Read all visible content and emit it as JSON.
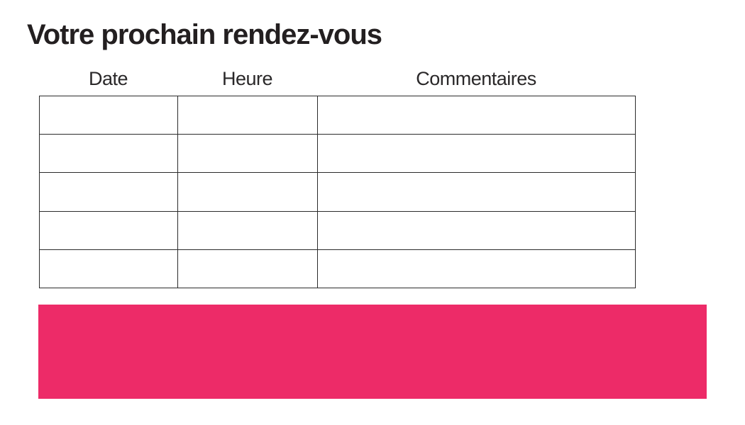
{
  "page": {
    "title": "Votre prochain rendez-vous",
    "background": "#ffffff"
  },
  "appointments_table": {
    "columns": [
      {
        "label": "Date"
      },
      {
        "label": "Heure"
      },
      {
        "label": "Commentaires"
      }
    ],
    "rows": [
      {
        "cells": [
          "",
          "",
          ""
        ]
      },
      {
        "cells": [
          "",
          "",
          ""
        ]
      },
      {
        "cells": [
          "",
          "",
          ""
        ]
      },
      {
        "cells": [
          "",
          "",
          ""
        ]
      },
      {
        "cells": [
          "",
          "",
          ""
        ]
      }
    ]
  },
  "accent_bar": {
    "color": "#ed2b68"
  },
  "colors": {
    "title_text": "#231f20",
    "header_text": "#2a2829",
    "table_border": "#2b2b2b"
  }
}
